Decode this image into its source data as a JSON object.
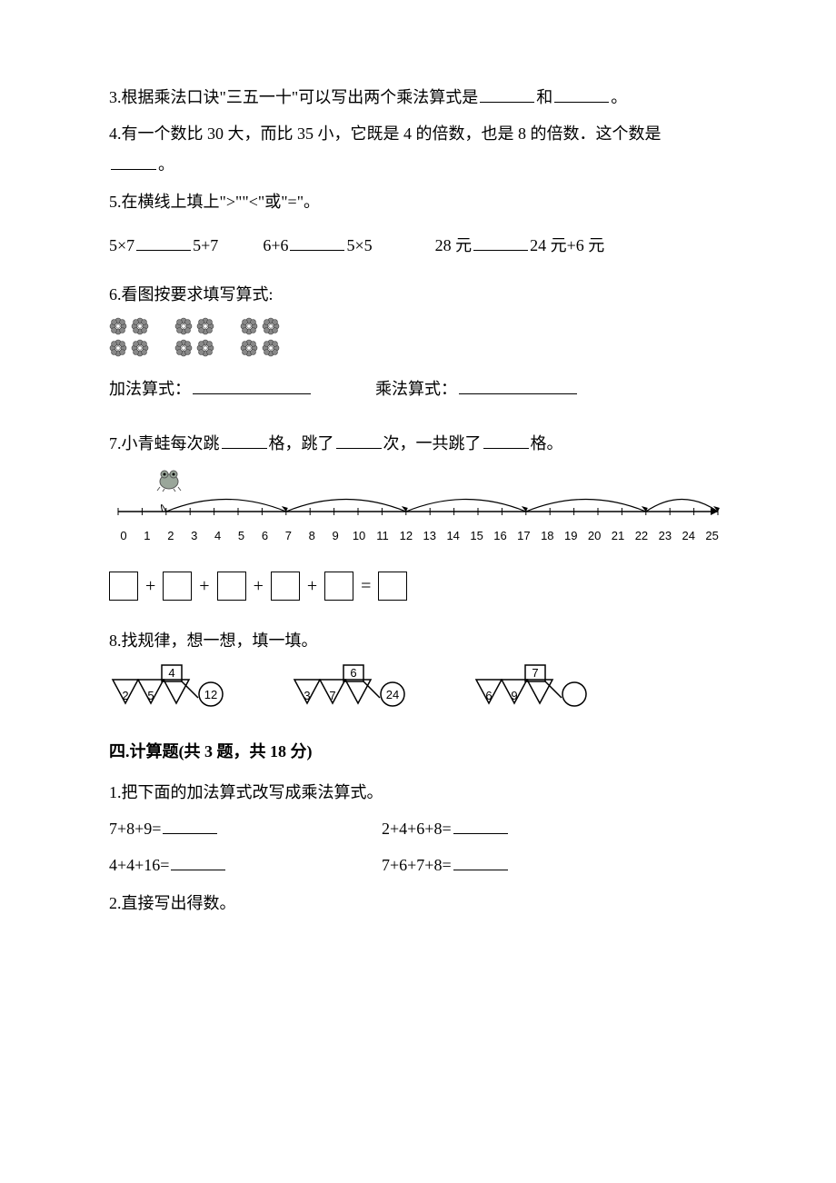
{
  "q3": {
    "text_a": "3.根据乘法口诀\"三五一十\"可以写出两个乘法算式是",
    "text_b": "和",
    "text_c": "。"
  },
  "q4": {
    "line1_a": "4.有一个数比 30 大，而比 35 小，它既是 4 的倍数，也是 8 的倍数．这个数是",
    "line2_a": "。"
  },
  "q5": {
    "title": "5.在横线上填上\">\"\"<\"或\"=\"。",
    "e1a": "5×7",
    "e1b": "5+7",
    "e2a": "6+6",
    "e2b": "5×5",
    "e3a": "28 元",
    "e3b": "24 元+6 元"
  },
  "q6": {
    "title": "6.看图按要求填写算式:",
    "add_label": "加法算式：",
    "mul_label": "乘法算式：",
    "groups": 3,
    "rows": 2,
    "cols": 2,
    "flower_color": "#888888",
    "flower_stroke": "#444444"
  },
  "q7": {
    "fill_a": "7.小青蛙每次跳",
    "fill_b": "格，跳了",
    "fill_c": "次，一共跳了",
    "fill_d": "格。",
    "ticks": [
      0,
      1,
      2,
      3,
      4,
      5,
      6,
      7,
      8,
      9,
      10,
      11,
      12,
      13,
      14,
      15,
      16,
      17,
      18,
      19,
      20,
      21,
      22,
      23,
      24,
      25
    ],
    "arc_starts": [
      2,
      7,
      12,
      17,
      22
    ],
    "arc_span": 5,
    "frog_at": 2,
    "line_color": "#000000",
    "arc_color": "#000000",
    "frog_color": "#9aa69a",
    "box_count": 5
  },
  "q8": {
    "title": "8.找规律，想一想，填一填。",
    "patterns": [
      {
        "triangles": [
          2,
          5,
          4
        ],
        "circle": 12
      },
      {
        "triangles": [
          3,
          7,
          6
        ],
        "circle": 24
      },
      {
        "triangles": [
          6,
          9,
          7
        ],
        "circle": null
      }
    ],
    "stroke": "#000000",
    "font": "14px Arial"
  },
  "section4": {
    "heading": "四.计算题(共 3 题，共 18 分)",
    "q1_title": "1.把下面的加法算式改写成乘法算式。",
    "q1_items": [
      {
        "left": "7+8+9=",
        "right": "2+4+6+8="
      },
      {
        "left": "4+4+16=",
        "right": "7+6+7+8="
      }
    ],
    "q2_title": "2.直接写出得数。"
  }
}
